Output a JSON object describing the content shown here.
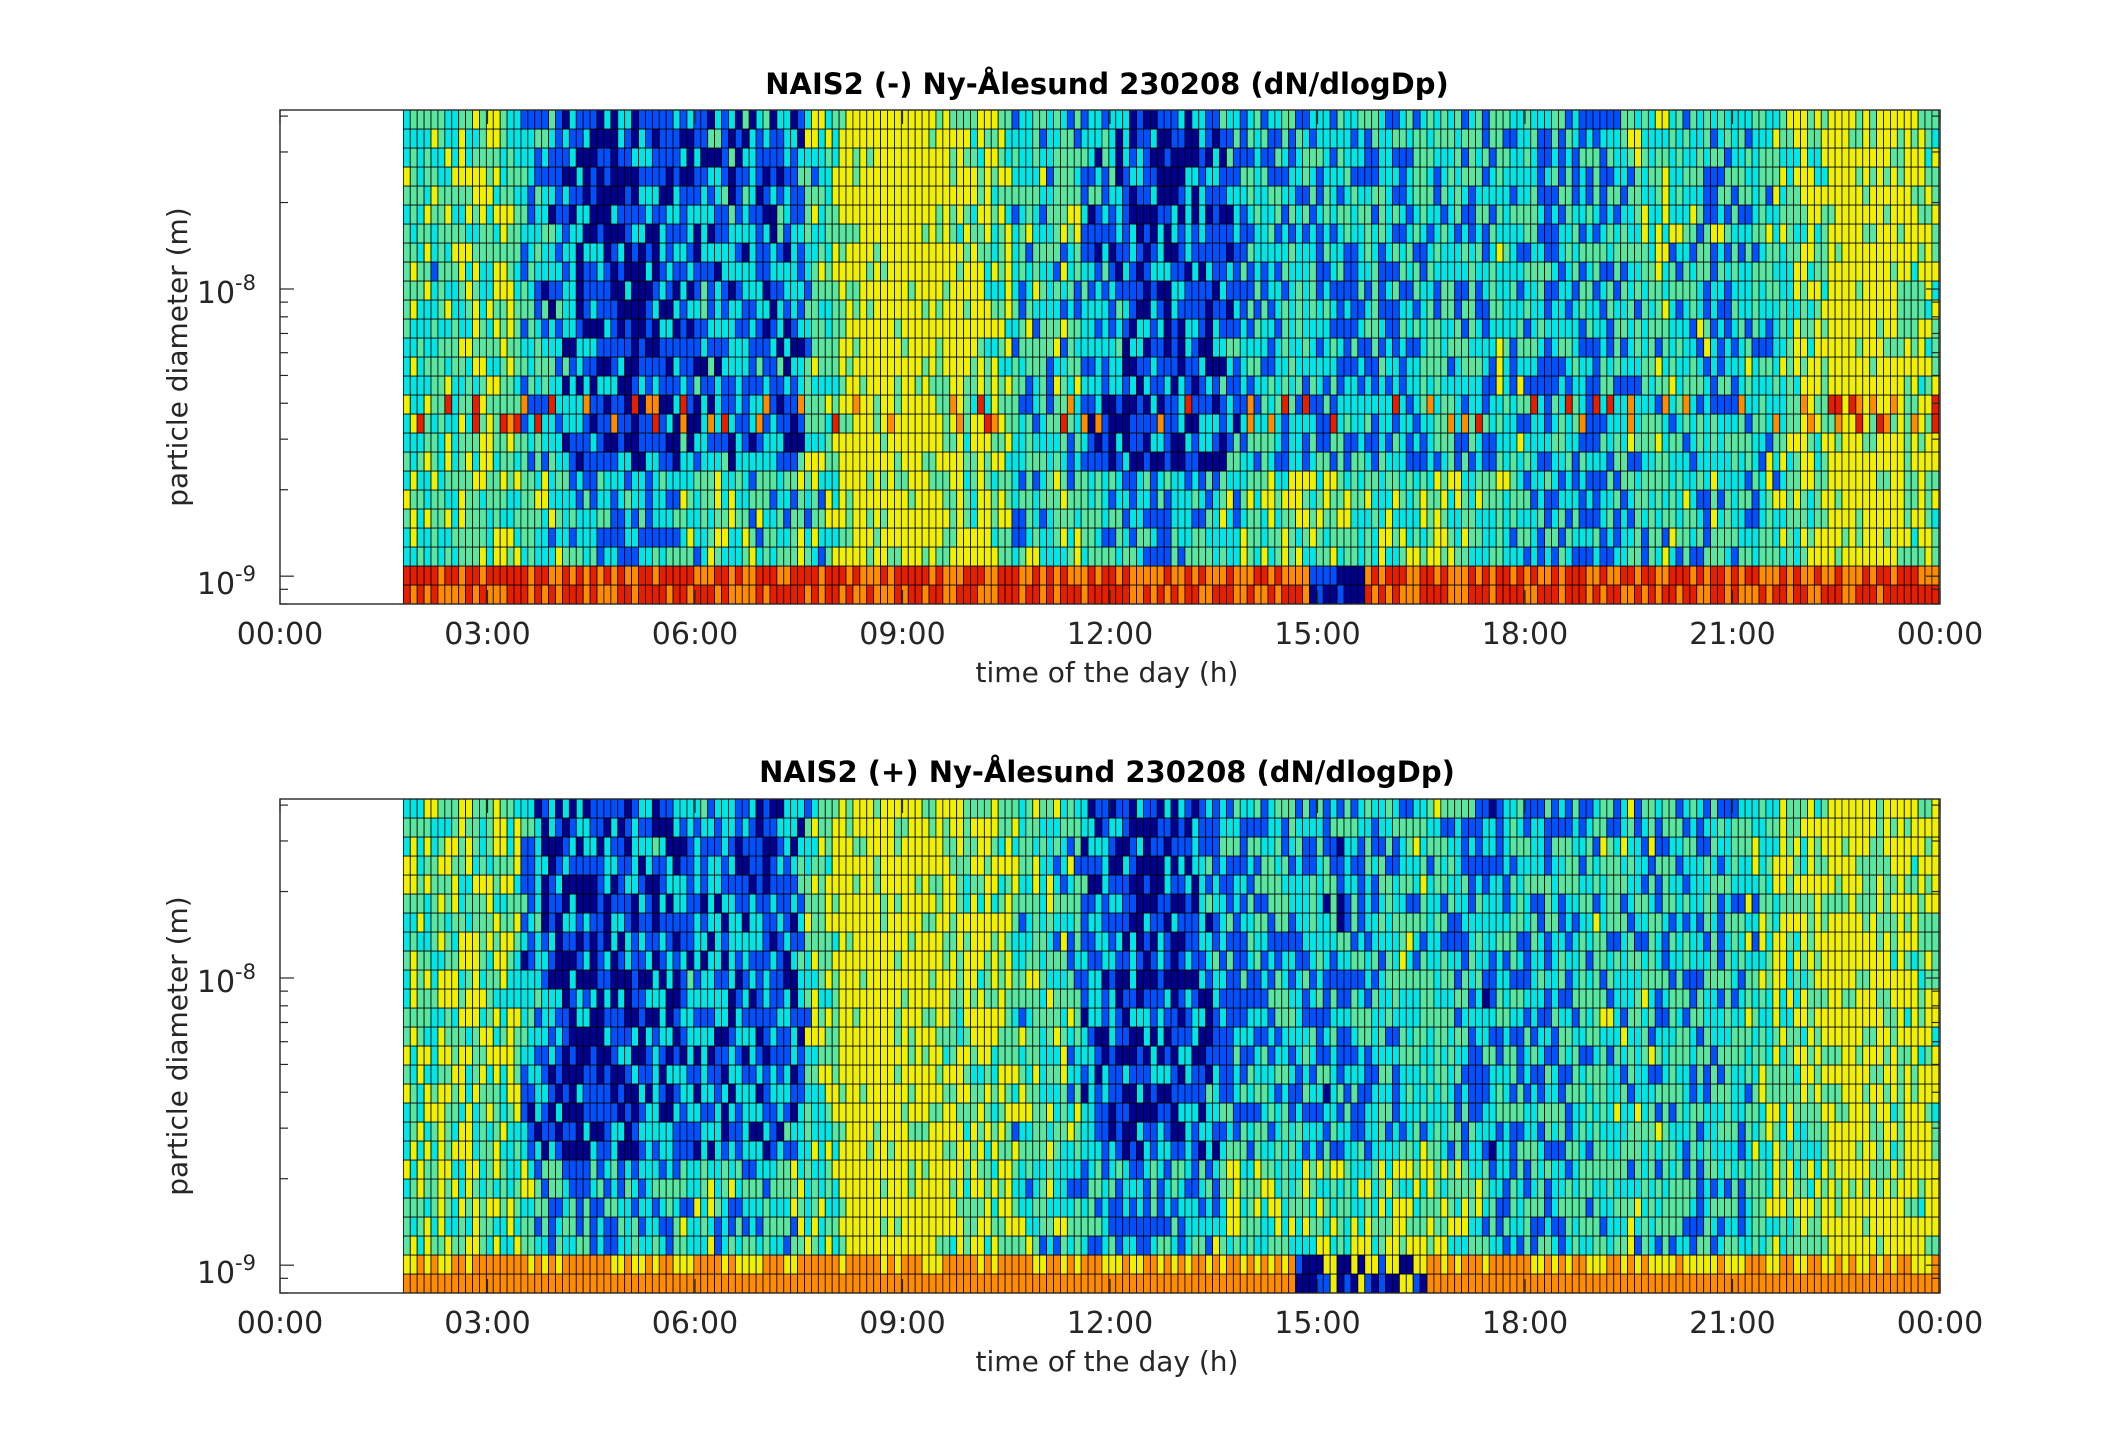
{
  "chart_data": [
    {
      "type": "heatmap",
      "title": "NAIS2 (-) Ny-Ålesund 230208 (dN/dlogDp)",
      "xlabel": "time of the day (h)",
      "ylabel": "particle diameter (m)",
      "xlim": [
        "00:00",
        "24:00"
      ],
      "ylim": [
        8e-10,
        4.2e-08
      ],
      "yscale": "log",
      "x_tick_labels": [
        "00:00",
        "03:00",
        "06:00",
        "09:00",
        "12:00",
        "15:00",
        "18:00",
        "21:00",
        "00:00"
      ],
      "y_tick_labels": [
        {
          "base": "10",
          "exp": "-9"
        },
        {
          "base": "10",
          "exp": "-8"
        }
      ],
      "data_start_time": "01:47",
      "grid": true,
      "colormap": "jet",
      "colorbar": false
    },
    {
      "type": "heatmap",
      "title": "NAIS2 (+) Ny-Ålesund 230208 (dN/dlogDp)",
      "xlabel": "time of the day (h)",
      "ylabel": "particle diameter (m)",
      "xlim": [
        "00:00",
        "24:00"
      ],
      "ylim": [
        8e-10,
        4.2e-08
      ],
      "yscale": "log",
      "x_tick_labels": [
        "00:00",
        "03:00",
        "06:00",
        "09:00",
        "12:00",
        "15:00",
        "18:00",
        "21:00",
        "00:00"
      ],
      "y_tick_labels": [
        {
          "base": "10",
          "exp": "-9"
        },
        {
          "base": "10",
          "exp": "-8"
        }
      ],
      "data_start_time": "01:47",
      "grid": true,
      "colormap": "jet",
      "colorbar": false
    }
  ],
  "colors": {
    "dark_blue": "#00008f",
    "blue": "#0050ff",
    "cyan": "#00e6e6",
    "green": "#5ae6a0",
    "yellow": "#f0f000",
    "orange": "#ff8c00",
    "red": "#e61e00"
  }
}
